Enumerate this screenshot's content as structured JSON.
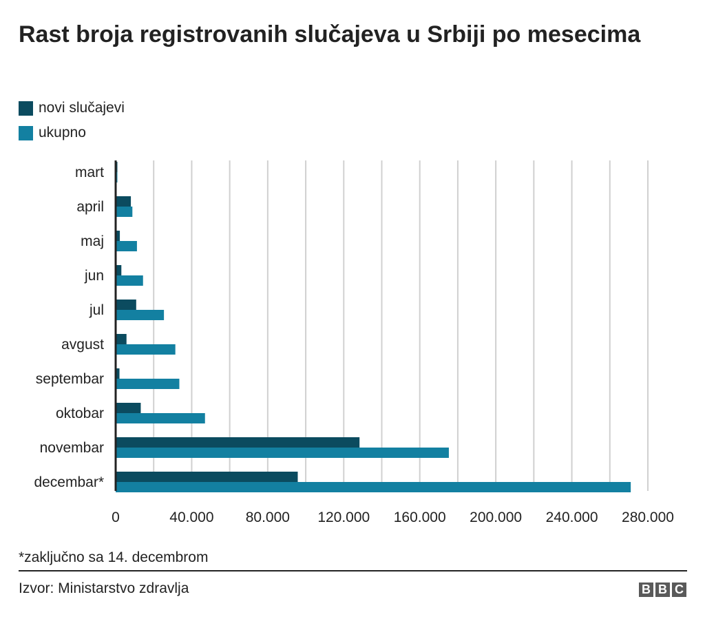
{
  "chart_data": {
    "type": "bar",
    "orientation": "horizontal",
    "title": "Rast broja registrovanih slučajeva u Srbiji po mesecima",
    "categories": [
      "mart",
      "april",
      "maj",
      "jun",
      "jul",
      "avgust",
      "septembar",
      "oktobar",
      "novembar",
      "decembar*"
    ],
    "series": [
      {
        "name": "novi slučajevi",
        "color": "#0b4b5f",
        "values": [
          900,
          8000,
          2200,
          3000,
          10800,
          5700,
          2000,
          13200,
          128300,
          95800
        ]
      },
      {
        "name": "ukupno",
        "color": "#1380a1",
        "values": [
          900,
          8800,
          11200,
          14400,
          25400,
          31400,
          33500,
          47000,
          175300,
          271000
        ]
      }
    ],
    "xlim": [
      0,
      280000
    ],
    "xticks": [
      0,
      40000,
      80000,
      120000,
      160000,
      200000,
      240000,
      280000
    ],
    "xtick_labels": [
      "0",
      "40.000",
      "80.000",
      "120.000",
      "160.000",
      "200.000",
      "240.000",
      "280.000"
    ],
    "grid": true,
    "gridline_step": 20000,
    "legend_placement": "top-left",
    "note": "*zaključno sa 14. decembrom",
    "source": "Izvor: Ministarstvo zdravlja"
  },
  "logo": "BBC"
}
